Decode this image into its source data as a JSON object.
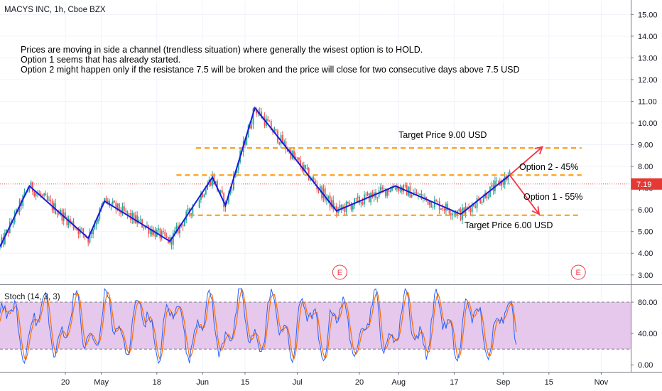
{
  "chart_title": "MACYS INC, 1h, Cboe BZX",
  "notes": [
    "Prices are moving in side a channel (trendless situation) where generally the wisest option is to HOLD.",
    "Option 1 seems that has already started.",
    "Option 2 might happen only if the resistance 7.5 will be broken and the price will close for two consecutive days above 7.5 USD"
  ],
  "colors": {
    "trend_line": "#1a1adb",
    "dashed_level": "#ff9800",
    "arrow": "#f23645",
    "price_line": "#e53935",
    "stoch_k": "#2962ff",
    "stoch_d": "#ff6d00",
    "stoch_band": "#e1bee7",
    "earnings": "#f23645"
  },
  "chart_data": [
    {
      "type": "candlestick",
      "name": "price",
      "title": "MACYS INC, 1h, Cboe BZX",
      "ylim": [
        2.6,
        15.6
      ],
      "y_ticks": [
        "3.00",
        "4.00",
        "5.00",
        "6.00",
        "7.00",
        "8.00",
        "9.00",
        "10.00",
        "11.00",
        "12.00",
        "13.00",
        "14.00",
        "15.00"
      ],
      "x_ticks": [
        "20",
        "May",
        "18",
        "Jun",
        "15",
        "Jul",
        "20",
        "Aug",
        "17",
        "Sep",
        "15",
        "Nov"
      ],
      "x_tick_days": [
        20,
        31,
        48,
        62,
        75,
        91,
        110,
        122,
        139,
        154,
        168,
        184
      ],
      "x_range_days": [
        0,
        184
      ],
      "last_price": "7.19",
      "channel_zigzag": [
        {
          "day": 0,
          "price": 4.3
        },
        {
          "day": 9,
          "price": 7.1
        },
        {
          "day": 27,
          "price": 4.7
        },
        {
          "day": 32,
          "price": 6.4
        },
        {
          "day": 52,
          "price": 4.55
        },
        {
          "day": 65,
          "price": 7.5
        },
        {
          "day": 69,
          "price": 6.2
        },
        {
          "day": 78,
          "price": 10.7
        },
        {
          "day": 103,
          "price": 5.95
        },
        {
          "day": 121,
          "price": 7.1
        },
        {
          "day": 141,
          "price": 5.8
        },
        {
          "day": 156,
          "price": 7.6
        }
      ],
      "levels": [
        {
          "price": 8.85,
          "day_start": 60,
          "day_end": 178,
          "label": "Target Price 9.00 USD"
        },
        {
          "price": 7.6,
          "day_start": 54,
          "day_end": 178,
          "label": ""
        },
        {
          "price": 5.75,
          "day_start": 58,
          "day_end": 178,
          "label": "Target Price 6.00 USD"
        }
      ],
      "scenarios": [
        {
          "label": "Option 2 - 45%",
          "from": {
            "day": 156,
            "price": 7.6
          },
          "to": {
            "day": 166,
            "price": 8.9
          }
        },
        {
          "label": "Option 1 - 55%",
          "from": {
            "day": 156,
            "price": 7.6
          },
          "to": {
            "day": 165,
            "price": 5.8
          }
        }
      ],
      "earnings_markers": [
        {
          "day": 104,
          "label": "E"
        },
        {
          "day": 177,
          "label": "E"
        }
      ]
    },
    {
      "type": "line",
      "name": "stochastic",
      "title": "Stoch (14, 3, 3)",
      "ylim": [
        -8,
        100
      ],
      "y_ticks": [
        "0.00",
        "40.00",
        "80.00"
      ],
      "band": [
        20,
        80
      ],
      "series": [
        {
          "name": "%K",
          "color": "#2962ff"
        },
        {
          "name": "%D",
          "color": "#ff6d00"
        }
      ],
      "day_range": [
        0,
        158
      ]
    }
  ]
}
